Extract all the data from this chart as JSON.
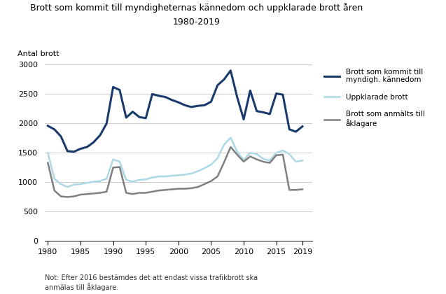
{
  "title_line1": "Brott som kommit till myndigheternas kännedom och uppklarade brott åren",
  "title_line2": "1980-2019",
  "ylabel": "Antal brott",
  "note": "Not: Efter 2016 bestämdes det att endast vissa trafikbrott ska\nanmälas till åklagare.",
  "years": [
    1980,
    1981,
    1982,
    1983,
    1984,
    1985,
    1986,
    1987,
    1988,
    1989,
    1990,
    1991,
    1992,
    1993,
    1994,
    1995,
    1996,
    1997,
    1998,
    1999,
    2000,
    2001,
    2002,
    2003,
    2004,
    2005,
    2006,
    2007,
    2008,
    2009,
    2010,
    2011,
    2012,
    2013,
    2014,
    2015,
    2016,
    2017,
    2018,
    2019
  ],
  "series1_kommit": [
    1960,
    1900,
    1780,
    1530,
    1520,
    1570,
    1600,
    1680,
    1800,
    2000,
    2620,
    2570,
    2100,
    2200,
    2110,
    2090,
    2500,
    2470,
    2450,
    2400,
    2360,
    2310,
    2280,
    2300,
    2310,
    2370,
    2650,
    2750,
    2900,
    2450,
    2070,
    2560,
    2210,
    2190,
    2160,
    2510,
    2490,
    1900,
    1860,
    1950
  ],
  "series2_uppklarade": [
    1500,
    1060,
    970,
    920,
    960,
    970,
    990,
    1010,
    1020,
    1060,
    1390,
    1350,
    1040,
    1010,
    1040,
    1050,
    1080,
    1100,
    1100,
    1110,
    1120,
    1130,
    1150,
    1190,
    1240,
    1300,
    1410,
    1640,
    1760,
    1520,
    1380,
    1500,
    1480,
    1400,
    1370,
    1500,
    1540,
    1480,
    1350,
    1370
  ],
  "series3_anmalts": [
    1330,
    860,
    760,
    750,
    760,
    790,
    800,
    810,
    820,
    840,
    1250,
    1260,
    820,
    800,
    820,
    820,
    840,
    860,
    870,
    880,
    890,
    890,
    900,
    920,
    970,
    1020,
    1100,
    1340,
    1600,
    1470,
    1350,
    1440,
    1390,
    1350,
    1330,
    1460,
    1470,
    870,
    870,
    880
  ],
  "color_kommit": "#1a3a6b",
  "color_uppklarade": "#add8e6",
  "color_anmalts": "#808080",
  "ylim": [
    0,
    3000
  ],
  "yticks": [
    0,
    500,
    1000,
    1500,
    2000,
    2500,
    3000
  ],
  "xticks": [
    1980,
    1985,
    1990,
    1995,
    2000,
    2005,
    2010,
    2015,
    2019
  ],
  "legend_labels": [
    "Brott som kommit till\nmyndigh. kännedom",
    "Uppklarade brott",
    "Brott som anmälts till\nåklagare"
  ],
  "bg_color": "#ffffff"
}
